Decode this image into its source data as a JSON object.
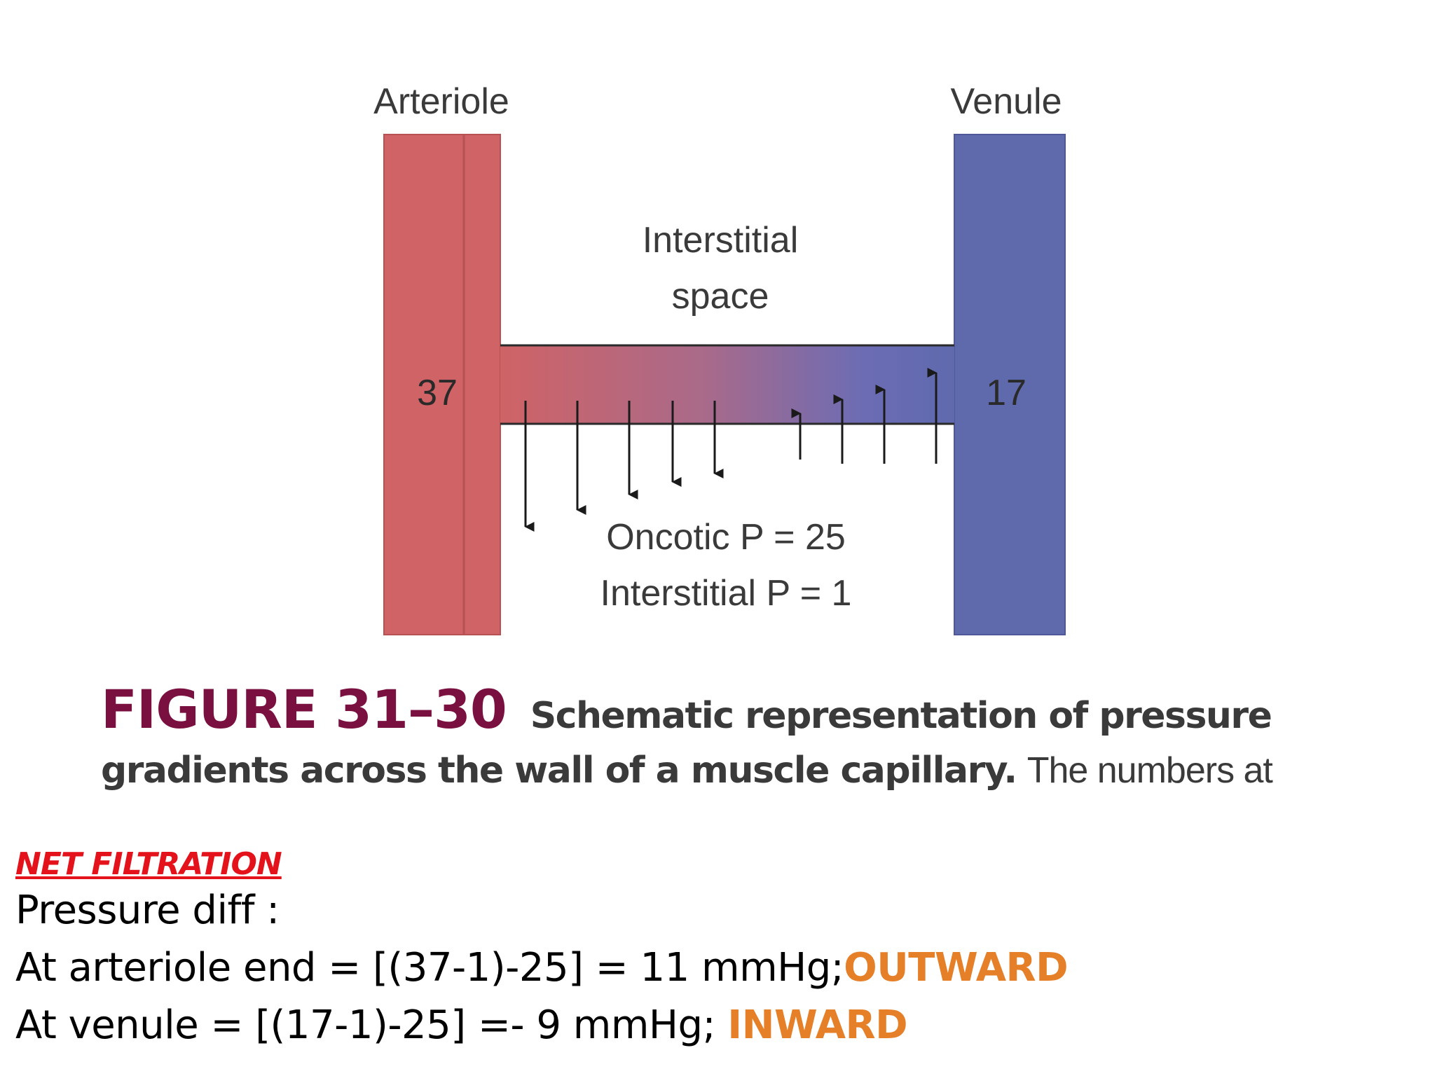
{
  "diagram": {
    "arteriole_label": "Arteriole",
    "venule_label": "Venule",
    "interstitial_line1": "Interstitial",
    "interstitial_line2": "space",
    "arteriole_pressure": "37",
    "venule_pressure": "17",
    "oncotic": "Oncotic P = 25",
    "interstitial_p": "Interstitial P = 1",
    "colors": {
      "arteriole": "#cf6366",
      "venule": "#5f6aad",
      "arrow": "#1a1a1a"
    }
  },
  "caption": {
    "figure_label": "FIGURE 31–30",
    "title_part1": "Schematic representation of pressure",
    "title_part2": "gradients across the wall of a muscle capillary.",
    "trailing": "The numbers at"
  },
  "notes": {
    "heading": "NET FILTRATION",
    "line1": "Pressure diff :",
    "line2_text": "At  arteriole end = [(37-1)-25] = 11 mmHg;",
    "line2_dir": "OUTWARD",
    "line3_text": "At venule = [(17-1)-25] =- 9 mmHg; ",
    "line3_dir": "INWARD",
    "direction_color": "#e57f28",
    "heading_color": "#e3121b"
  }
}
